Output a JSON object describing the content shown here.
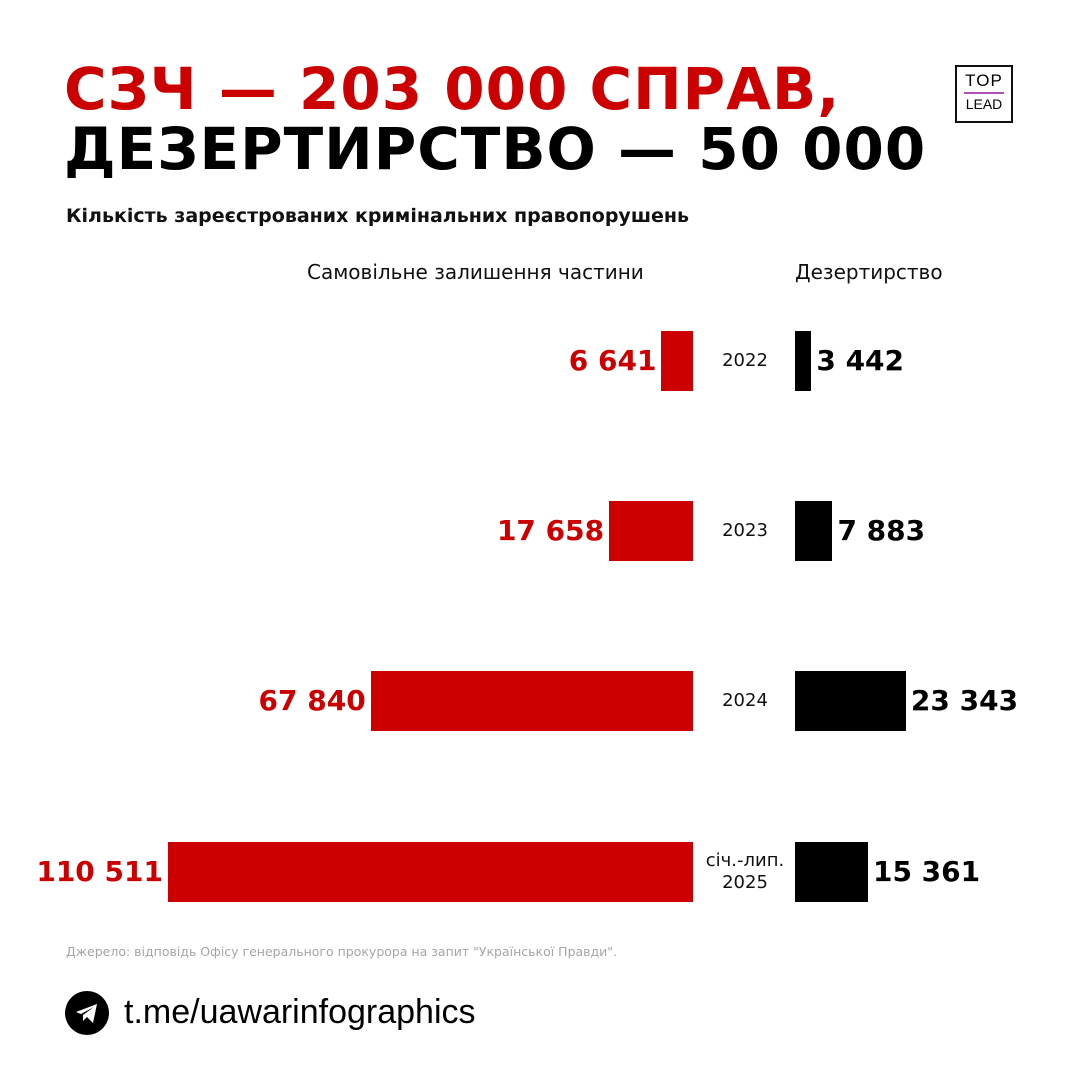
{
  "title_line1": "СЗЧ — 203 000 СПРАВ,",
  "title_line2": "ДЕЗЕРТИРСТВО — 50 000",
  "logo": {
    "top": "TOP",
    "bottom": "LEAD"
  },
  "colors": {
    "red": "#cc0000",
    "black": "#000000"
  },
  "chart_data": {
    "type": "bar",
    "orientation": "horizontal-butterfly",
    "title": "Кількість зареєстрованих кримінальних правопорушень",
    "categories": [
      "2022",
      "2023",
      "2024",
      "січ.-лип. 2025"
    ],
    "series": [
      {
        "name": "Самовільне залишення частини",
        "values": [
          6641,
          17658,
          67840,
          110511
        ],
        "labels": [
          "6 641",
          "17 658",
          "67 840",
          "110 511"
        ],
        "color": "#cc0000"
      },
      {
        "name": "Дезертирство",
        "values": [
          3442,
          7883,
          23343,
          15361
        ],
        "labels": [
          "3 442",
          "7 883",
          "23 343",
          "15 361"
        ],
        "color": "#000000"
      }
    ]
  },
  "source": "Джерело: відповідь Офісу генерального прокурора на запит \"Української Правди\".",
  "footer": {
    "icon": "telegram-icon",
    "link": "t.me/uawarinfographics"
  }
}
